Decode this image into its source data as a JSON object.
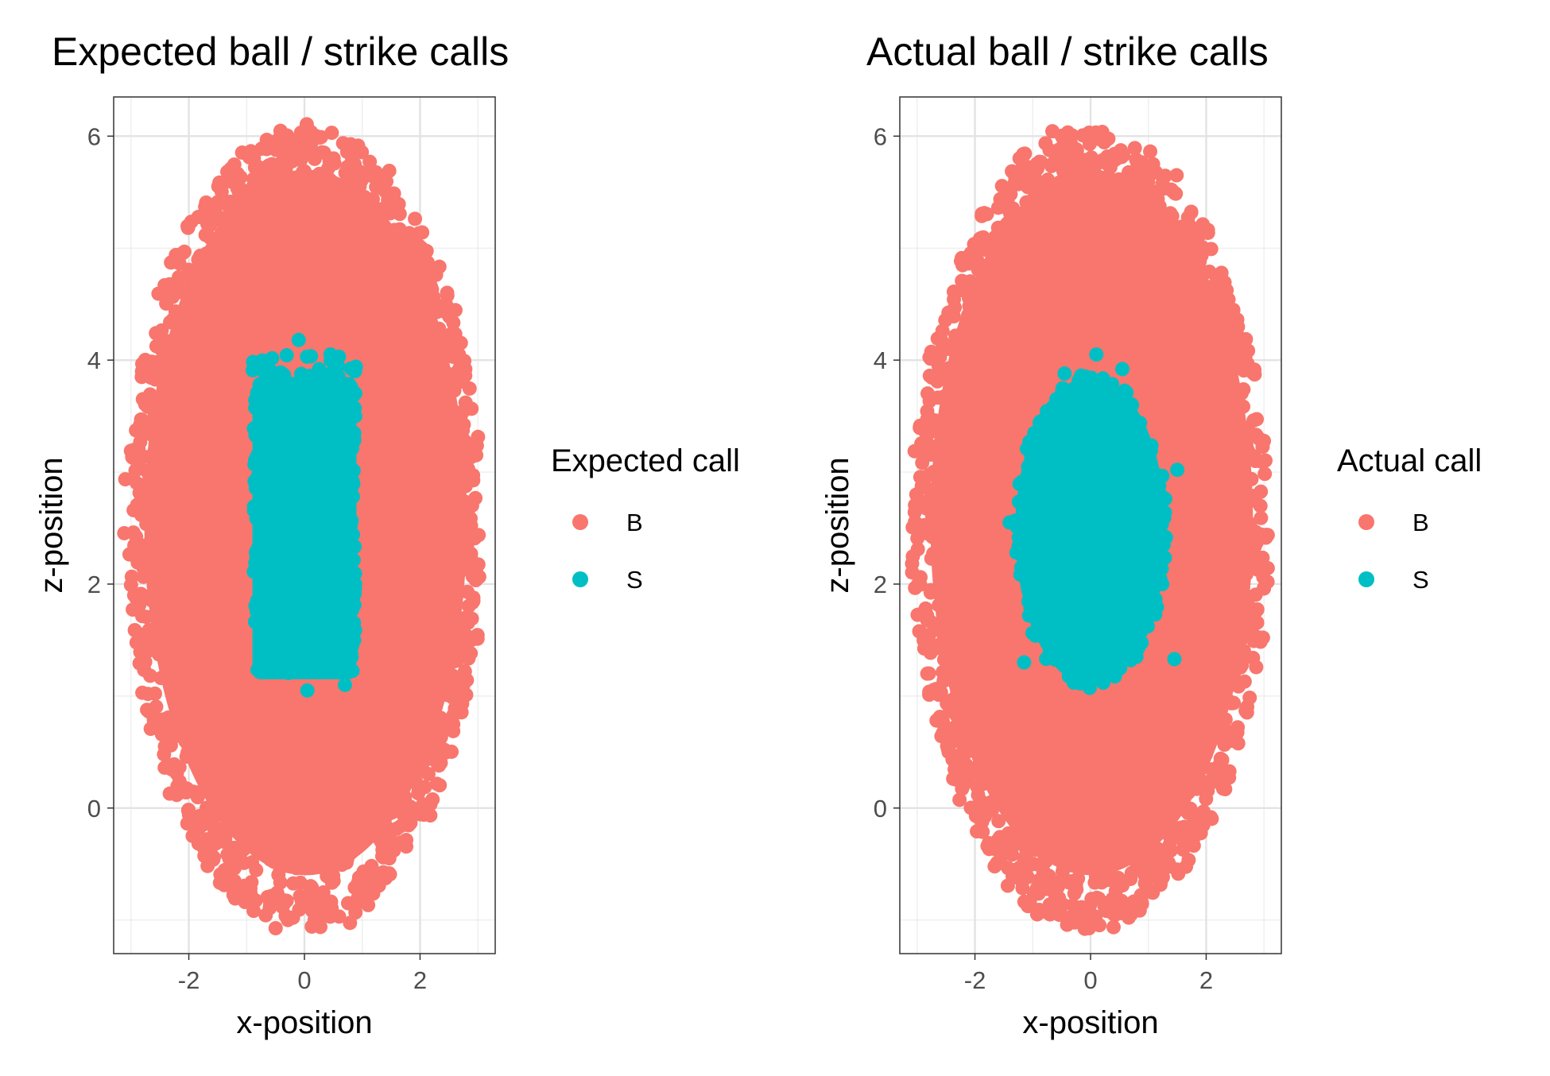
{
  "chart_data": [
    {
      "type": "scatter",
      "title": "Expected ball / strike calls",
      "xlabel": "x-position",
      "ylabel": "z-position",
      "xlim": [
        -3.3,
        3.3
      ],
      "ylim": [
        -1.3,
        6.35
      ],
      "xticks": [
        -2,
        0,
        2
      ],
      "yticks": [
        0,
        2,
        4,
        6
      ],
      "grid": true,
      "legend": {
        "title": "Expected call",
        "placement": "right"
      },
      "series": [
        {
          "name": "B",
          "color": "#F8766D",
          "region": "ellipse",
          "x_range": [
            -3.0,
            3.0
          ],
          "y_range": [
            -1.0,
            6.0
          ]
        },
        {
          "name": "S",
          "color": "#00BFC4",
          "region": "rectangle",
          "x_range": [
            -0.9,
            0.9
          ],
          "y_range": [
            1.15,
            4.1
          ]
        }
      ]
    },
    {
      "type": "scatter",
      "title": "Actual ball / strike calls",
      "xlabel": "x-position",
      "ylabel": "z-position",
      "xlim": [
        -3.3,
        3.3
      ],
      "ylim": [
        -1.3,
        6.35
      ],
      "xticks": [
        -2,
        0,
        2
      ],
      "yticks": [
        0,
        2,
        4,
        6
      ],
      "grid": true,
      "legend": {
        "title": "Actual call",
        "placement": "right"
      },
      "series": [
        {
          "name": "B",
          "color": "#F8766D",
          "region": "ellipse",
          "x_range": [
            -3.0,
            3.0
          ],
          "y_range": [
            -1.0,
            6.0
          ]
        },
        {
          "name": "S",
          "color": "#00BFC4",
          "region": "rounded",
          "x_range": [
            -1.4,
            1.5
          ],
          "y_range": [
            1.1,
            4.05
          ]
        }
      ]
    }
  ]
}
